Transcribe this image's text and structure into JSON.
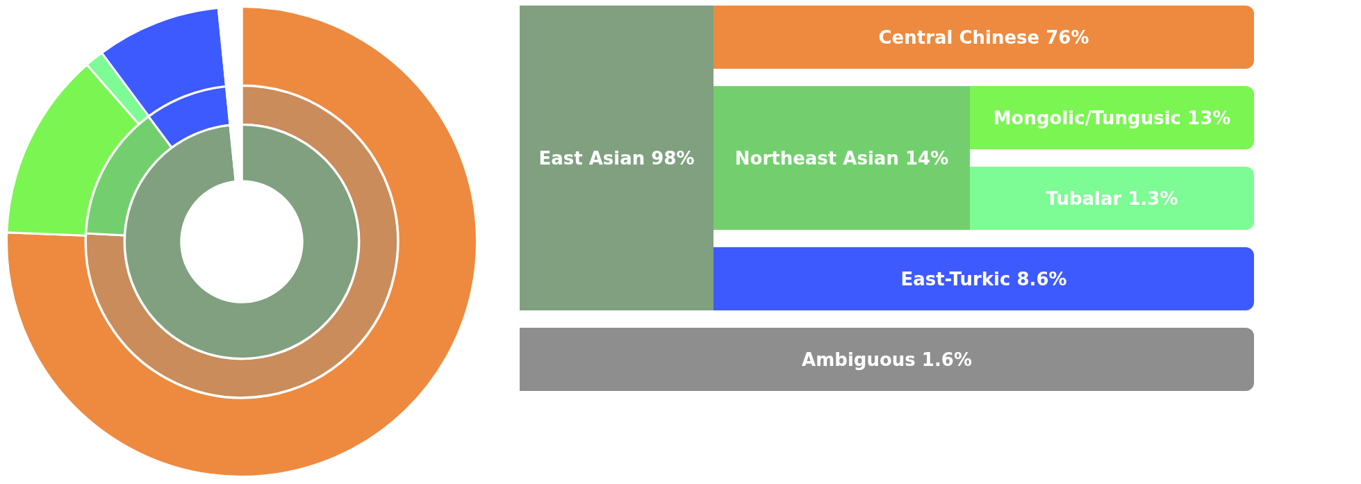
{
  "chart_data": [
    {
      "type": "donut",
      "categories": [
        null,
        null
      ],
      "values": [
        98,
        1.6
      ],
      "colors": [
        "#80a080",
        "#ffffff"
      ]
    },
    {
      "type": "donut",
      "categories": [
        null,
        null,
        null,
        null
      ],
      "values": [
        76,
        14,
        8.6,
        1.6
      ],
      "colors": [
        "#c98c5a",
        "#73cf6e",
        "#3d5afe",
        "#ffffff"
      ]
    },
    {
      "type": "donut",
      "categories": [
        null,
        null,
        null,
        null,
        null
      ],
      "values": [
        76,
        13,
        1.3,
        8.6,
        1.6
      ],
      "colors": [
        "#ed8a3f",
        "#7af552",
        "#7dfb94",
        "#3d5afe",
        "#ffffff"
      ]
    },
    {
      "type": "other",
      "annotations": [
        "East Asian 98%",
        "Central Chinese 76%",
        "Northeast Asian 14%",
        "Mongolic/Tungusic 13%",
        "Tubalar 1.3%",
        "East-Turkic 8.6%",
        "Ambiguous 1.6%"
      ],
      "colors": [
        "#80a080",
        "#ed8a3f",
        "#73cf6e",
        "#7af552",
        "#7dfb94",
        "#3d5afe",
        "#8e8e8e"
      ]
    }
  ]
}
